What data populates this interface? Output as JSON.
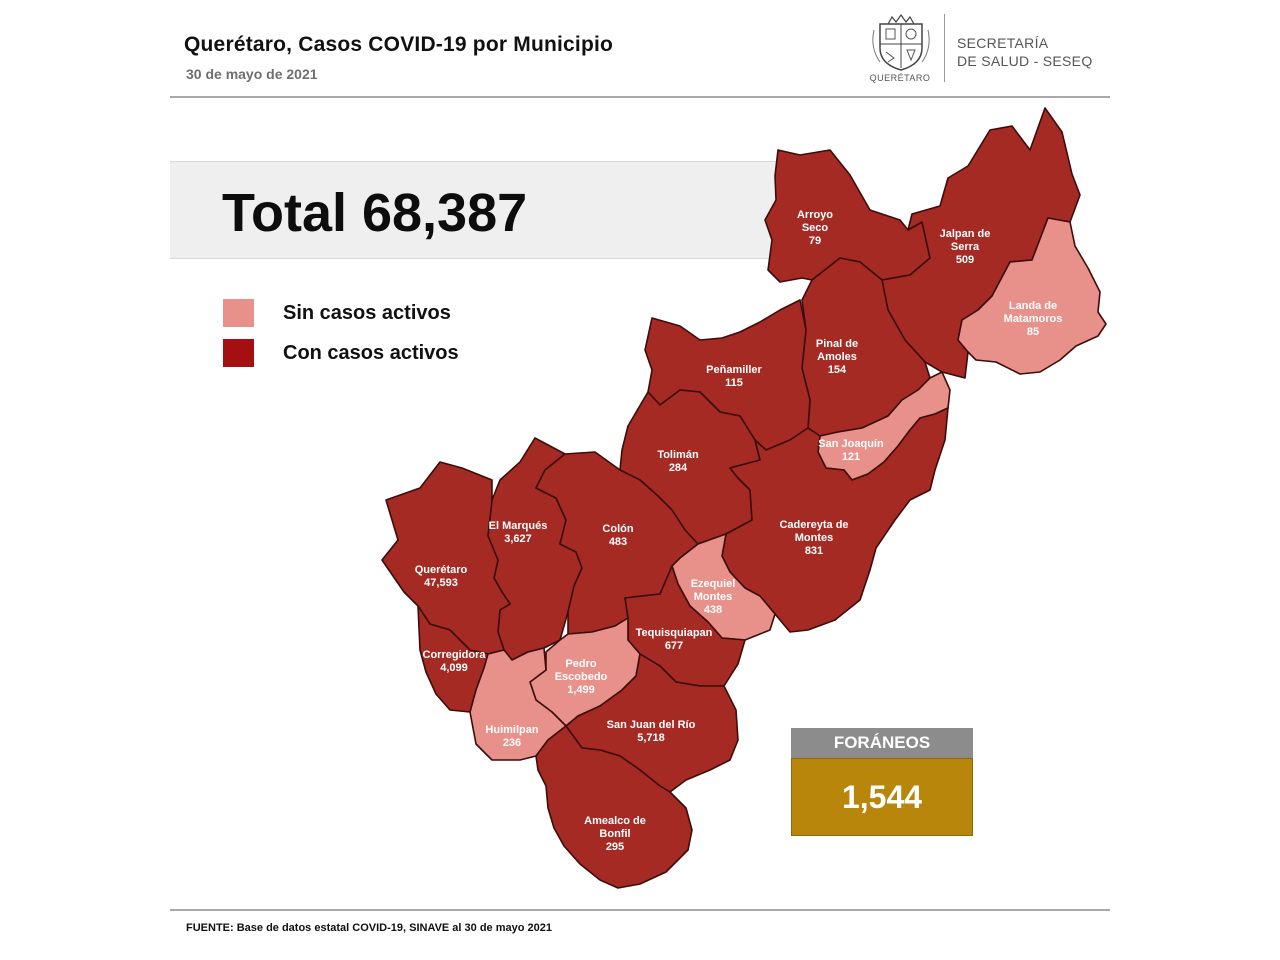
{
  "header": {
    "title": "Querétaro, Casos COVID-19 por Municipio",
    "date": "30 de mayo de 2021",
    "logo_caption": "QUERÉTARO",
    "org_line1": "SECRETARÍA",
    "org_line2": "DE SALUD - SESEQ"
  },
  "total": {
    "label": "Total 68,387"
  },
  "legend": [
    {
      "label": "Sin casos activos",
      "color": "#e8908a"
    },
    {
      "label": "Con casos activos",
      "color": "#a50f12"
    }
  ],
  "colors": {
    "active": "#a52a24",
    "inactive": "#e8908a",
    "border": "#3b0d0b",
    "foraneos_header": "#8c8c8c",
    "foraneos_value": "#b8860b"
  },
  "municipios": [
    {
      "name_lines": [
        "Arroyo",
        "Seco"
      ],
      "cases": "79",
      "status": "active"
    },
    {
      "name_lines": [
        "Jalpan de",
        "Serra"
      ],
      "cases": "509",
      "status": "active"
    },
    {
      "name_lines": [
        "Landa de",
        "Matamoros"
      ],
      "cases": "85",
      "status": "inactive"
    },
    {
      "name_lines": [
        "Pinal de",
        "Amoles"
      ],
      "cases": "154",
      "status": "active"
    },
    {
      "name_lines": [
        "Peñamiller"
      ],
      "cases": "115",
      "status": "active"
    },
    {
      "name_lines": [
        "San Joaquín"
      ],
      "cases": "121",
      "status": "inactive"
    },
    {
      "name_lines": [
        "Tolimán"
      ],
      "cases": "284",
      "status": "active"
    },
    {
      "name_lines": [
        "Cadereyta de",
        "Montes"
      ],
      "cases": "831",
      "status": "active"
    },
    {
      "name_lines": [
        "El  Marqués"
      ],
      "cases": "3,627",
      "status": "active"
    },
    {
      "name_lines": [
        "Colón"
      ],
      "cases": "483",
      "status": "active"
    },
    {
      "name_lines": [
        "Querétaro"
      ],
      "cases": "47,593",
      "status": "active"
    },
    {
      "name_lines": [
        "Ezequiel",
        "Montes"
      ],
      "cases": "438",
      "status": "inactive"
    },
    {
      "name_lines": [
        "Tequisquiapan"
      ],
      "cases": "677",
      "status": "active"
    },
    {
      "name_lines": [
        "Corregidora"
      ],
      "cases": "4,099",
      "status": "active"
    },
    {
      "name_lines": [
        "Pedro",
        "Escobedo"
      ],
      "cases": "1,499",
      "status": "inactive"
    },
    {
      "name_lines": [
        "Huimilpan"
      ],
      "cases": "236",
      "status": "inactive"
    },
    {
      "name_lines": [
        "San Juan del Río"
      ],
      "cases": "5,718",
      "status": "active"
    },
    {
      "name_lines": [
        "Amealco de",
        "Bonfil"
      ],
      "cases": "295",
      "status": "active"
    }
  ],
  "foraneos": {
    "label": "FORÁNEOS",
    "value": "1,544"
  },
  "source": "FUENTE:  Base de datos estatal COVID-19,  SINAVE  al 30 de mayo 2021"
}
